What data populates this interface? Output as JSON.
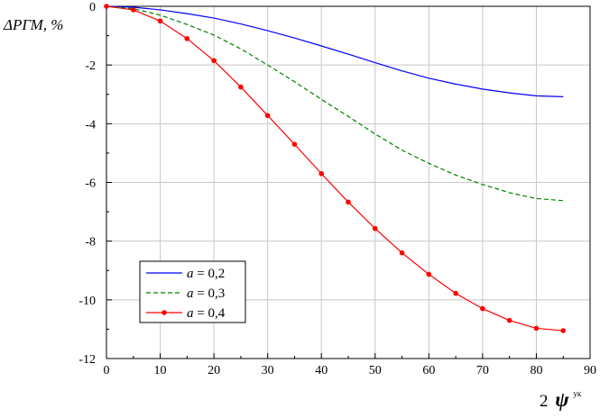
{
  "chart_data": {
    "type": "line",
    "ylabel": "ΔРГМ, %",
    "xlabel": {
      "prefix": "2",
      "symbol": "ψ",
      "superscript": "ук"
    },
    "xlim": [
      0,
      90
    ],
    "ylim": [
      -12,
      0
    ],
    "x_ticks": [
      0,
      10,
      20,
      30,
      40,
      50,
      60,
      70,
      80,
      90
    ],
    "y_ticks": [
      0,
      -2,
      -4,
      -6,
      -8,
      -10,
      -12
    ],
    "grid": true,
    "legend_position": "bottom-left",
    "series": [
      {
        "name": "a = 0,2",
        "legend": {
          "var": "a",
          "rest": " = 0,2"
        },
        "color": "#0000ff",
        "style": "solid",
        "markers": false,
        "x": [
          0,
          5,
          10,
          15,
          20,
          25,
          30,
          35,
          40,
          45,
          50,
          55,
          60,
          65,
          70,
          75,
          80,
          85
        ],
        "y": [
          0,
          -0.03,
          -0.12,
          -0.25,
          -0.4,
          -0.6,
          -0.83,
          -1.08,
          -1.35,
          -1.63,
          -1.92,
          -2.2,
          -2.45,
          -2.65,
          -2.82,
          -2.95,
          -3.05,
          -3.08
        ]
      },
      {
        "name": "a = 0,3",
        "legend": {
          "var": "a",
          "rest": " = 0,3"
        },
        "color": "#008000",
        "style": "dashed",
        "markers": false,
        "x": [
          0,
          5,
          10,
          15,
          20,
          25,
          30,
          35,
          40,
          45,
          50,
          55,
          60,
          65,
          70,
          75,
          80,
          85
        ],
        "y": [
          0,
          -0.08,
          -0.3,
          -0.62,
          -0.98,
          -1.45,
          -2.0,
          -2.57,
          -3.17,
          -3.75,
          -4.35,
          -4.9,
          -5.35,
          -5.75,
          -6.07,
          -6.35,
          -6.55,
          -6.62
        ]
      },
      {
        "name": "a = 0,4",
        "legend": {
          "var": "a",
          "rest": " = 0,4"
        },
        "color": "#ff0000",
        "style": "solid",
        "markers": true,
        "x": [
          0,
          5,
          10,
          15,
          20,
          25,
          30,
          35,
          40,
          45,
          50,
          55,
          60,
          65,
          70,
          75,
          80,
          85
        ],
        "y": [
          0,
          -0.12,
          -0.5,
          -1.1,
          -1.85,
          -2.75,
          -3.72,
          -4.7,
          -5.7,
          -6.67,
          -7.57,
          -8.4,
          -9.13,
          -9.78,
          -10.3,
          -10.7,
          -10.97,
          -11.05
        ]
      }
    ]
  }
}
